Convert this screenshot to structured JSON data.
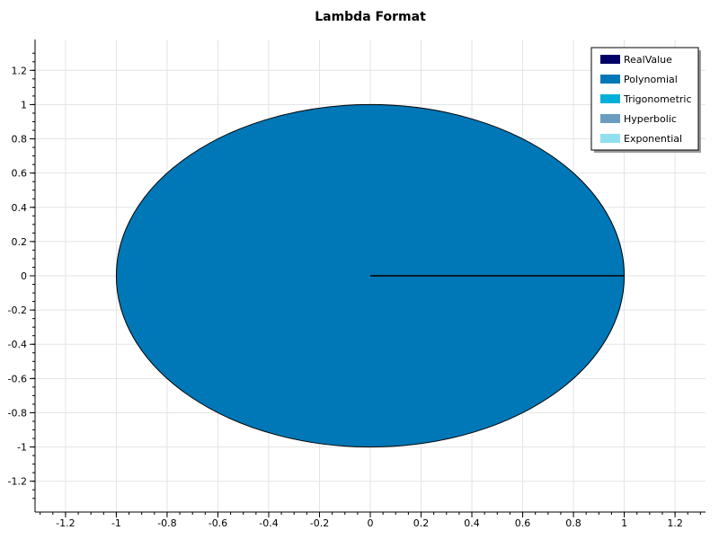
{
  "chart_data": {
    "type": "pie",
    "title": "Lambda Format",
    "xlabel": "",
    "ylabel": "",
    "xlim": [
      -1.32,
      1.32
    ],
    "ylim": [
      -1.38,
      1.38
    ],
    "xticks": [
      -1.2,
      -1,
      -0.8,
      -0.6,
      -0.4,
      -0.2,
      0,
      0.2,
      0.4,
      0.6,
      0.8,
      1,
      1.2
    ],
    "yticks": [
      1.2,
      1,
      0.8,
      0.6,
      0.4,
      0.2,
      0,
      -0.2,
      -0.4,
      -0.6,
      -0.8,
      -1,
      -1.2
    ],
    "grid": true,
    "legend_position": "top-right",
    "slices": [
      {
        "name": "RealValue",
        "value": 0,
        "color": "#000066"
      },
      {
        "name": "Polynomial",
        "value": 1,
        "color": "#0077B6"
      },
      {
        "name": "Trigonometric",
        "value": 0,
        "color": "#00B0D8"
      },
      {
        "name": "Hyperbolic",
        "value": 0,
        "color": "#6A9EC0"
      },
      {
        "name": "Exponential",
        "value": 0,
        "color": "#90E0EF"
      }
    ]
  }
}
